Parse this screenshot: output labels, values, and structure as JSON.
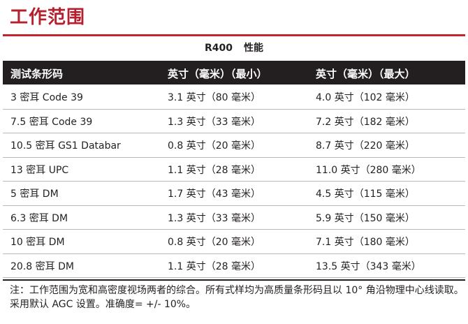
{
  "title": "工作范围",
  "subtitle": {
    "model": "R400",
    "label": "性能"
  },
  "table": {
    "headers": [
      "测试条形码",
      "英寸（毫米）（最小）",
      "英寸（毫米）（最大）"
    ],
    "rows": [
      [
        "3 密耳 Code 39",
        "3.1 英寸（80 毫米）",
        "4.0 英寸（102 毫米）"
      ],
      [
        "7.5 密耳 Code 39",
        "1.3 英寸（33 毫米）",
        "7.2 英寸（182 毫米）"
      ],
      [
        "10.5 密耳 GS1 Databar",
        "0.8 英寸（20 毫米）",
        "8.7 英寸（220 毫米）"
      ],
      [
        "13 密耳 UPC",
        "1.1 英寸（28 毫米）",
        "11.0 英寸（280 毫米）"
      ],
      [
        "5 密耳 DM",
        "1.7 英寸（43 毫米）",
        "4.5 英寸（115 毫米）"
      ],
      [
        "6.3 密耳 DM",
        "1.3 英寸（33 毫米）",
        "5.9 英寸（150 毫米）"
      ],
      [
        "10 密耳 DM",
        "0.8 英寸（20 毫米）",
        "7.1 英寸（180 毫米）"
      ],
      [
        "20.8 密耳 DM",
        "1.1 英寸（28 毫米）",
        "13.5 英寸（343 毫米）"
      ]
    ]
  },
  "note": "注：工作范围为宽和高密度视场两者的综合。所有式样均为高质量条形码且以 10° 角沿物理中心线读取。采用默认 AGC 设置。准确度= +/- 10%。",
  "colors": {
    "accent": "#c0272d",
    "header_bg": "#231f20"
  }
}
